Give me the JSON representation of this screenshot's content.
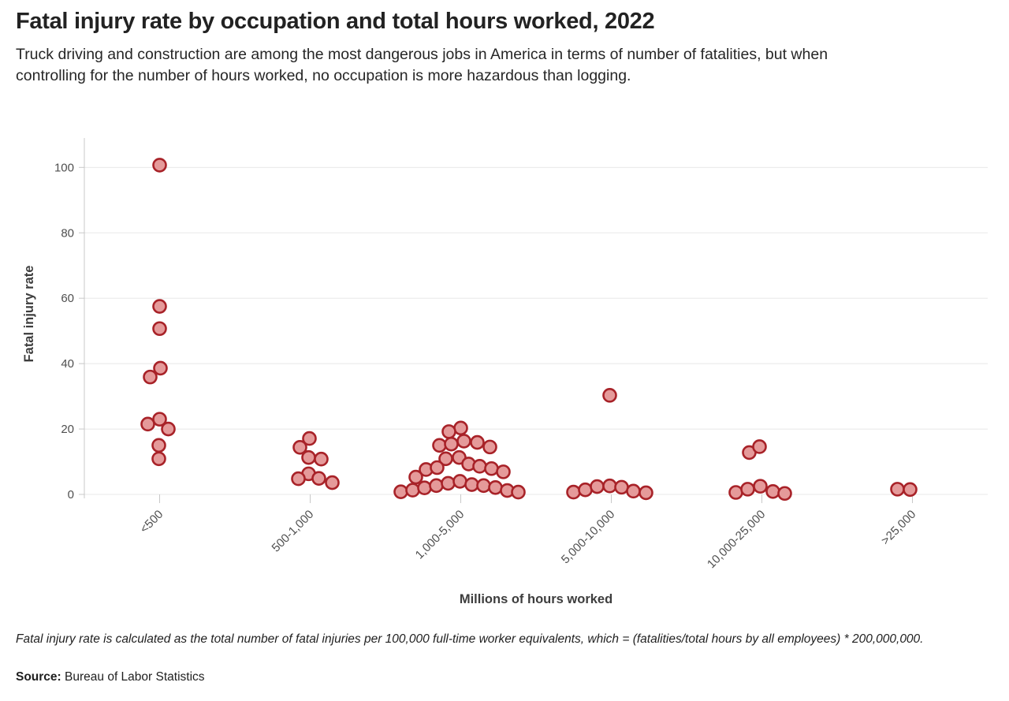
{
  "header": {
    "title": "Fatal injury rate by occupation and total hours worked, 2022",
    "subtitle": "Truck driving and construction are among the most dangerous jobs in America in terms of number of fatalities, but when controlling for the number of hours worked, no occupation is more hazardous than logging."
  },
  "footnote": {
    "note": "Fatal injury rate is calculated as the total number of fatal injuries per 100,000 full-time worker equivalents, which = (fatalities/total hours by all employees) * 200,000,000.",
    "source_label": "Source:",
    "source_text": "Bureau of Labor Statistics"
  },
  "colors": {
    "dot_fill": "#e59a9a",
    "dot_stroke": "#a82228",
    "grid": "#e8e8e8",
    "axis": "#c8c8c8",
    "tick_text": "#4f4f4f",
    "axis_title_text": "#3d3d3d"
  },
  "chart_data": {
    "type": "scatter",
    "title": "Fatal injury rate by occupation and total hours worked, 2022",
    "xlabel": "Millions of hours worked",
    "ylabel": "Fatal injury rate",
    "categories": [
      "<500",
      "500-1,000",
      "1,000-5,000",
      "5,000-10,000",
      "10,000-25,000",
      ">25,000"
    ],
    "y_ticks": [
      0,
      20,
      40,
      60,
      80,
      100
    ],
    "ylim": [
      0,
      109
    ],
    "grid": "horizontal",
    "legend": "none",
    "points": [
      {
        "c": 0,
        "dx": 0,
        "v": 100.7
      },
      {
        "c": 0,
        "dx": 0,
        "v": 57.5
      },
      {
        "c": 0,
        "dx": 0,
        "v": 50.7
      },
      {
        "c": 0,
        "dx": 1,
        "v": 38.6
      },
      {
        "c": 0,
        "dx": -12,
        "v": 35.9
      },
      {
        "c": 0,
        "dx": 0,
        "v": 23
      },
      {
        "c": 0,
        "dx": -15,
        "v": 21.5
      },
      {
        "c": 0,
        "dx": 11,
        "v": 20
      },
      {
        "c": 0,
        "dx": -1,
        "v": 15
      },
      {
        "c": 0,
        "dx": -1,
        "v": 10.9
      },
      {
        "c": 1,
        "dx": -1,
        "v": 17.1
      },
      {
        "c": 1,
        "dx": -13,
        "v": 14.4
      },
      {
        "c": 1,
        "dx": -2,
        "v": 11.3
      },
      {
        "c": 1,
        "dx": 14,
        "v": 10.8
      },
      {
        "c": 1,
        "dx": -2,
        "v": 6.3
      },
      {
        "c": 1,
        "dx": -15,
        "v": 4.8
      },
      {
        "c": 1,
        "dx": 11,
        "v": 4.9
      },
      {
        "c": 1,
        "dx": 28,
        "v": 3.6
      },
      {
        "c": 2,
        "dx": 0,
        "v": 20.3
      },
      {
        "c": 2,
        "dx": -15,
        "v": 19.2
      },
      {
        "c": 2,
        "dx": -27,
        "v": 15
      },
      {
        "c": 2,
        "dx": -12,
        "v": 15.4
      },
      {
        "c": 2,
        "dx": 4,
        "v": 16.3
      },
      {
        "c": 2,
        "dx": 21,
        "v": 15.9
      },
      {
        "c": 2,
        "dx": 37,
        "v": 14.5
      },
      {
        "c": 2,
        "dx": -19,
        "v": 10.9
      },
      {
        "c": 2,
        "dx": -2,
        "v": 11.3
      },
      {
        "c": 2,
        "dx": 10,
        "v": 9.3
      },
      {
        "c": 2,
        "dx": 24,
        "v": 8.6
      },
      {
        "c": 2,
        "dx": 39,
        "v": 7.9
      },
      {
        "c": 2,
        "dx": 54,
        "v": 6.9
      },
      {
        "c": 2,
        "dx": -44,
        "v": 7.6
      },
      {
        "c": 2,
        "dx": -30,
        "v": 8.2
      },
      {
        "c": 2,
        "dx": -57,
        "v": 5.3
      },
      {
        "c": 2,
        "dx": -76,
        "v": 0.8
      },
      {
        "c": 2,
        "dx": -61,
        "v": 1.3
      },
      {
        "c": 2,
        "dx": -46,
        "v": 2
      },
      {
        "c": 2,
        "dx": -31,
        "v": 2.7
      },
      {
        "c": 2,
        "dx": -16,
        "v": 3.4
      },
      {
        "c": 2,
        "dx": -1,
        "v": 4
      },
      {
        "c": 2,
        "dx": 14,
        "v": 3
      },
      {
        "c": 2,
        "dx": 29,
        "v": 2.7
      },
      {
        "c": 2,
        "dx": 44,
        "v": 2.1
      },
      {
        "c": 2,
        "dx": 59,
        "v": 1.2
      },
      {
        "c": 2,
        "dx": 73,
        "v": 0.7
      },
      {
        "c": 3,
        "dx": -2,
        "v": 30.3
      },
      {
        "c": 3,
        "dx": -48,
        "v": 0.7
      },
      {
        "c": 3,
        "dx": -33,
        "v": 1.4
      },
      {
        "c": 3,
        "dx": -18,
        "v": 2.4
      },
      {
        "c": 3,
        "dx": -2,
        "v": 2.6
      },
      {
        "c": 3,
        "dx": 13,
        "v": 2.2
      },
      {
        "c": 3,
        "dx": 28,
        "v": 1
      },
      {
        "c": 3,
        "dx": 44,
        "v": 0.5
      },
      {
        "c": 4,
        "dx": -16,
        "v": 12.8
      },
      {
        "c": 4,
        "dx": -3,
        "v": 14.6
      },
      {
        "c": 4,
        "dx": -33,
        "v": 0.6
      },
      {
        "c": 4,
        "dx": -18,
        "v": 1.6
      },
      {
        "c": 4,
        "dx": -2,
        "v": 2.5
      },
      {
        "c": 4,
        "dx": 14,
        "v": 0.9
      },
      {
        "c": 4,
        "dx": 29,
        "v": 0.3
      },
      {
        "c": 5,
        "dx": -19,
        "v": 1.6
      },
      {
        "c": 5,
        "dx": -3,
        "v": 1.5
      }
    ]
  }
}
